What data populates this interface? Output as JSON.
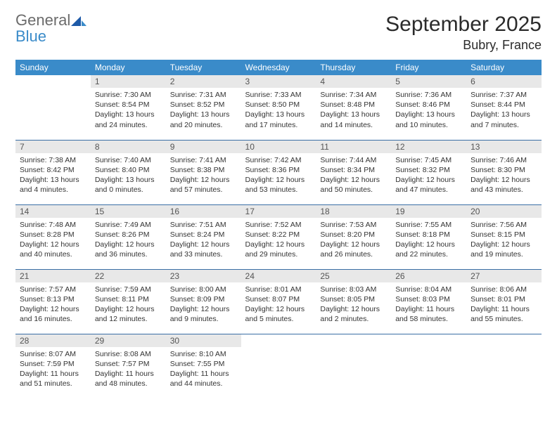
{
  "logo": {
    "general": "General",
    "blue": "Blue"
  },
  "title": "September 2025",
  "location": "Bubry, France",
  "colors": {
    "header_bg": "#3a8bc9",
    "header_text": "#ffffff",
    "daynum_bg": "#e8e8e8",
    "row_divider": "#3a6ea5",
    "logo_blue": "#3a8bc9",
    "logo_gray": "#6b6b6b"
  },
  "weekdays": [
    "Sunday",
    "Monday",
    "Tuesday",
    "Wednesday",
    "Thursday",
    "Friday",
    "Saturday"
  ],
  "grid": [
    [
      null,
      {
        "n": "1",
        "sr": "Sunrise: 7:30 AM",
        "ss": "Sunset: 8:54 PM",
        "dl": "Daylight: 13 hours and 24 minutes."
      },
      {
        "n": "2",
        "sr": "Sunrise: 7:31 AM",
        "ss": "Sunset: 8:52 PM",
        "dl": "Daylight: 13 hours and 20 minutes."
      },
      {
        "n": "3",
        "sr": "Sunrise: 7:33 AM",
        "ss": "Sunset: 8:50 PM",
        "dl": "Daylight: 13 hours and 17 minutes."
      },
      {
        "n": "4",
        "sr": "Sunrise: 7:34 AM",
        "ss": "Sunset: 8:48 PM",
        "dl": "Daylight: 13 hours and 14 minutes."
      },
      {
        "n": "5",
        "sr": "Sunrise: 7:36 AM",
        "ss": "Sunset: 8:46 PM",
        "dl": "Daylight: 13 hours and 10 minutes."
      },
      {
        "n": "6",
        "sr": "Sunrise: 7:37 AM",
        "ss": "Sunset: 8:44 PM",
        "dl": "Daylight: 13 hours and 7 minutes."
      }
    ],
    [
      {
        "n": "7",
        "sr": "Sunrise: 7:38 AM",
        "ss": "Sunset: 8:42 PM",
        "dl": "Daylight: 13 hours and 4 minutes."
      },
      {
        "n": "8",
        "sr": "Sunrise: 7:40 AM",
        "ss": "Sunset: 8:40 PM",
        "dl": "Daylight: 13 hours and 0 minutes."
      },
      {
        "n": "9",
        "sr": "Sunrise: 7:41 AM",
        "ss": "Sunset: 8:38 PM",
        "dl": "Daylight: 12 hours and 57 minutes."
      },
      {
        "n": "10",
        "sr": "Sunrise: 7:42 AM",
        "ss": "Sunset: 8:36 PM",
        "dl": "Daylight: 12 hours and 53 minutes."
      },
      {
        "n": "11",
        "sr": "Sunrise: 7:44 AM",
        "ss": "Sunset: 8:34 PM",
        "dl": "Daylight: 12 hours and 50 minutes."
      },
      {
        "n": "12",
        "sr": "Sunrise: 7:45 AM",
        "ss": "Sunset: 8:32 PM",
        "dl": "Daylight: 12 hours and 47 minutes."
      },
      {
        "n": "13",
        "sr": "Sunrise: 7:46 AM",
        "ss": "Sunset: 8:30 PM",
        "dl": "Daylight: 12 hours and 43 minutes."
      }
    ],
    [
      {
        "n": "14",
        "sr": "Sunrise: 7:48 AM",
        "ss": "Sunset: 8:28 PM",
        "dl": "Daylight: 12 hours and 40 minutes."
      },
      {
        "n": "15",
        "sr": "Sunrise: 7:49 AM",
        "ss": "Sunset: 8:26 PM",
        "dl": "Daylight: 12 hours and 36 minutes."
      },
      {
        "n": "16",
        "sr": "Sunrise: 7:51 AM",
        "ss": "Sunset: 8:24 PM",
        "dl": "Daylight: 12 hours and 33 minutes."
      },
      {
        "n": "17",
        "sr": "Sunrise: 7:52 AM",
        "ss": "Sunset: 8:22 PM",
        "dl": "Daylight: 12 hours and 29 minutes."
      },
      {
        "n": "18",
        "sr": "Sunrise: 7:53 AM",
        "ss": "Sunset: 8:20 PM",
        "dl": "Daylight: 12 hours and 26 minutes."
      },
      {
        "n": "19",
        "sr": "Sunrise: 7:55 AM",
        "ss": "Sunset: 8:18 PM",
        "dl": "Daylight: 12 hours and 22 minutes."
      },
      {
        "n": "20",
        "sr": "Sunrise: 7:56 AM",
        "ss": "Sunset: 8:15 PM",
        "dl": "Daylight: 12 hours and 19 minutes."
      }
    ],
    [
      {
        "n": "21",
        "sr": "Sunrise: 7:57 AM",
        "ss": "Sunset: 8:13 PM",
        "dl": "Daylight: 12 hours and 16 minutes."
      },
      {
        "n": "22",
        "sr": "Sunrise: 7:59 AM",
        "ss": "Sunset: 8:11 PM",
        "dl": "Daylight: 12 hours and 12 minutes."
      },
      {
        "n": "23",
        "sr": "Sunrise: 8:00 AM",
        "ss": "Sunset: 8:09 PM",
        "dl": "Daylight: 12 hours and 9 minutes."
      },
      {
        "n": "24",
        "sr": "Sunrise: 8:01 AM",
        "ss": "Sunset: 8:07 PM",
        "dl": "Daylight: 12 hours and 5 minutes."
      },
      {
        "n": "25",
        "sr": "Sunrise: 8:03 AM",
        "ss": "Sunset: 8:05 PM",
        "dl": "Daylight: 12 hours and 2 minutes."
      },
      {
        "n": "26",
        "sr": "Sunrise: 8:04 AM",
        "ss": "Sunset: 8:03 PM",
        "dl": "Daylight: 11 hours and 58 minutes."
      },
      {
        "n": "27",
        "sr": "Sunrise: 8:06 AM",
        "ss": "Sunset: 8:01 PM",
        "dl": "Daylight: 11 hours and 55 minutes."
      }
    ],
    [
      {
        "n": "28",
        "sr": "Sunrise: 8:07 AM",
        "ss": "Sunset: 7:59 PM",
        "dl": "Daylight: 11 hours and 51 minutes."
      },
      {
        "n": "29",
        "sr": "Sunrise: 8:08 AM",
        "ss": "Sunset: 7:57 PM",
        "dl": "Daylight: 11 hours and 48 minutes."
      },
      {
        "n": "30",
        "sr": "Sunrise: 8:10 AM",
        "ss": "Sunset: 7:55 PM",
        "dl": "Daylight: 11 hours and 44 minutes."
      },
      null,
      null,
      null,
      null
    ]
  ]
}
